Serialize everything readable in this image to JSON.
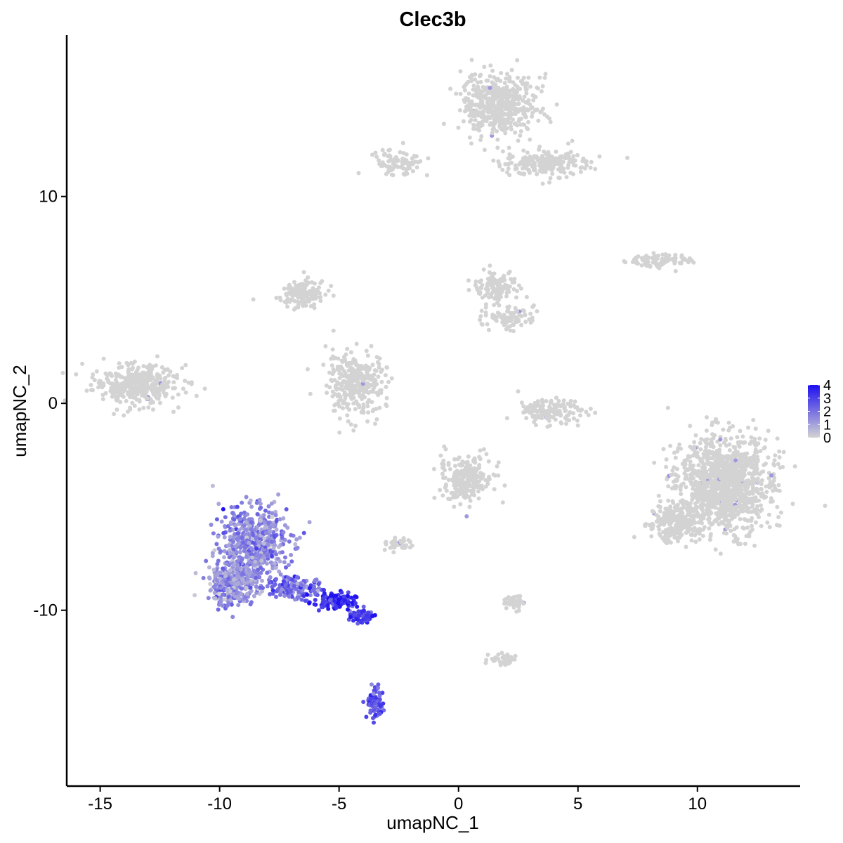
{
  "chart_data": {
    "type": "scatter",
    "title": "Clec3b",
    "xlabel": "umapNC_1",
    "ylabel": "umapNC_2",
    "xlim": [
      -16.4,
      14.3
    ],
    "ylim": [
      -18.5,
      17.8
    ],
    "x_ticks": [
      -15,
      -10,
      -5,
      0,
      5,
      10
    ],
    "x_tick_labels": [
      "-15",
      "-10",
      "-5",
      "0",
      "5",
      "10"
    ],
    "y_ticks": [
      -10,
      0,
      10
    ],
    "y_tick_labels": [
      "-10",
      "0",
      "10"
    ],
    "grid": false,
    "point_color_low": "#d3d3d3",
    "point_color_high": "#1e10f0",
    "legend": {
      "position": "right",
      "min": 0,
      "max": 4,
      "tick_values": [
        0,
        1,
        2,
        3,
        4
      ],
      "tick_labels": [
        "0",
        "1",
        "2",
        "3",
        "4"
      ]
    },
    "clusters": [
      {
        "cx": -13.5,
        "cy": 0.9,
        "rx": 1.6,
        "ry": 0.9,
        "n": 380,
        "expr": 0
      },
      {
        "cx": -6.6,
        "cy": 5.3,
        "rx": 0.9,
        "ry": 0.6,
        "n": 160,
        "expr": 0
      },
      {
        "cx": -4.3,
        "cy": 1.0,
        "rx": 1.1,
        "ry": 1.3,
        "n": 330,
        "expr": 0
      },
      {
        "cx": 1.6,
        "cy": 5.6,
        "rx": 0.9,
        "ry": 0.7,
        "n": 120,
        "expr": 0
      },
      {
        "cx": 2.2,
        "cy": 4.2,
        "rx": 0.9,
        "ry": 0.5,
        "n": 90,
        "expr": 0
      },
      {
        "cx": 1.7,
        "cy": 14.4,
        "rx": 1.4,
        "ry": 1.4,
        "n": 520,
        "expr": 0
      },
      {
        "cx": 3.7,
        "cy": 11.6,
        "rx": 1.6,
        "ry": 0.6,
        "n": 220,
        "expr": 0
      },
      {
        "cx": -2.5,
        "cy": 11.6,
        "rx": 0.9,
        "ry": 0.5,
        "n": 90,
        "expr": 0
      },
      {
        "cx": 8.3,
        "cy": 6.9,
        "rx": 1.3,
        "ry": 0.3,
        "n": 90,
        "expr": 0
      },
      {
        "cx": 11.1,
        "cy": -3.9,
        "rx": 1.8,
        "ry": 2.1,
        "n": 1200,
        "expr": 0
      },
      {
        "cx": 9.0,
        "cy": -5.8,
        "rx": 0.9,
        "ry": 0.8,
        "n": 220,
        "expr": 0
      },
      {
        "cx": 0.3,
        "cy": -3.6,
        "rx": 1.0,
        "ry": 1.0,
        "n": 240,
        "expr": 0
      },
      {
        "cx": 3.8,
        "cy": -0.4,
        "rx": 1.2,
        "ry": 0.5,
        "n": 140,
        "expr": 0
      },
      {
        "cx": 2.4,
        "cy": -9.6,
        "rx": 0.4,
        "ry": 0.3,
        "n": 50,
        "expr": 0
      },
      {
        "cx": 1.8,
        "cy": -12.4,
        "rx": 0.6,
        "ry": 0.3,
        "n": 40,
        "expr": 0
      },
      {
        "cx": -2.5,
        "cy": -6.8,
        "rx": 0.5,
        "ry": 0.3,
        "n": 40,
        "expr": 0
      },
      {
        "cx": -8.6,
        "cy": -6.8,
        "rx": 1.3,
        "ry": 1.6,
        "n": 620,
        "expr": 1.5
      },
      {
        "cx": -9.5,
        "cy": -8.8,
        "rx": 0.9,
        "ry": 0.9,
        "n": 260,
        "expr": 1.4
      },
      {
        "cx": -6.8,
        "cy": -8.9,
        "rx": 1.0,
        "ry": 0.5,
        "n": 140,
        "expr": 2.2
      },
      {
        "cx": -5.2,
        "cy": -9.6,
        "rx": 0.8,
        "ry": 0.4,
        "n": 110,
        "expr": 3.4
      },
      {
        "cx": -4.1,
        "cy": -10.3,
        "rx": 0.5,
        "ry": 0.3,
        "n": 60,
        "expr": 3.0
      },
      {
        "cx": -3.5,
        "cy": -14.5,
        "rx": 0.3,
        "ry": 0.7,
        "n": 80,
        "expr": 2.6
      }
    ]
  }
}
